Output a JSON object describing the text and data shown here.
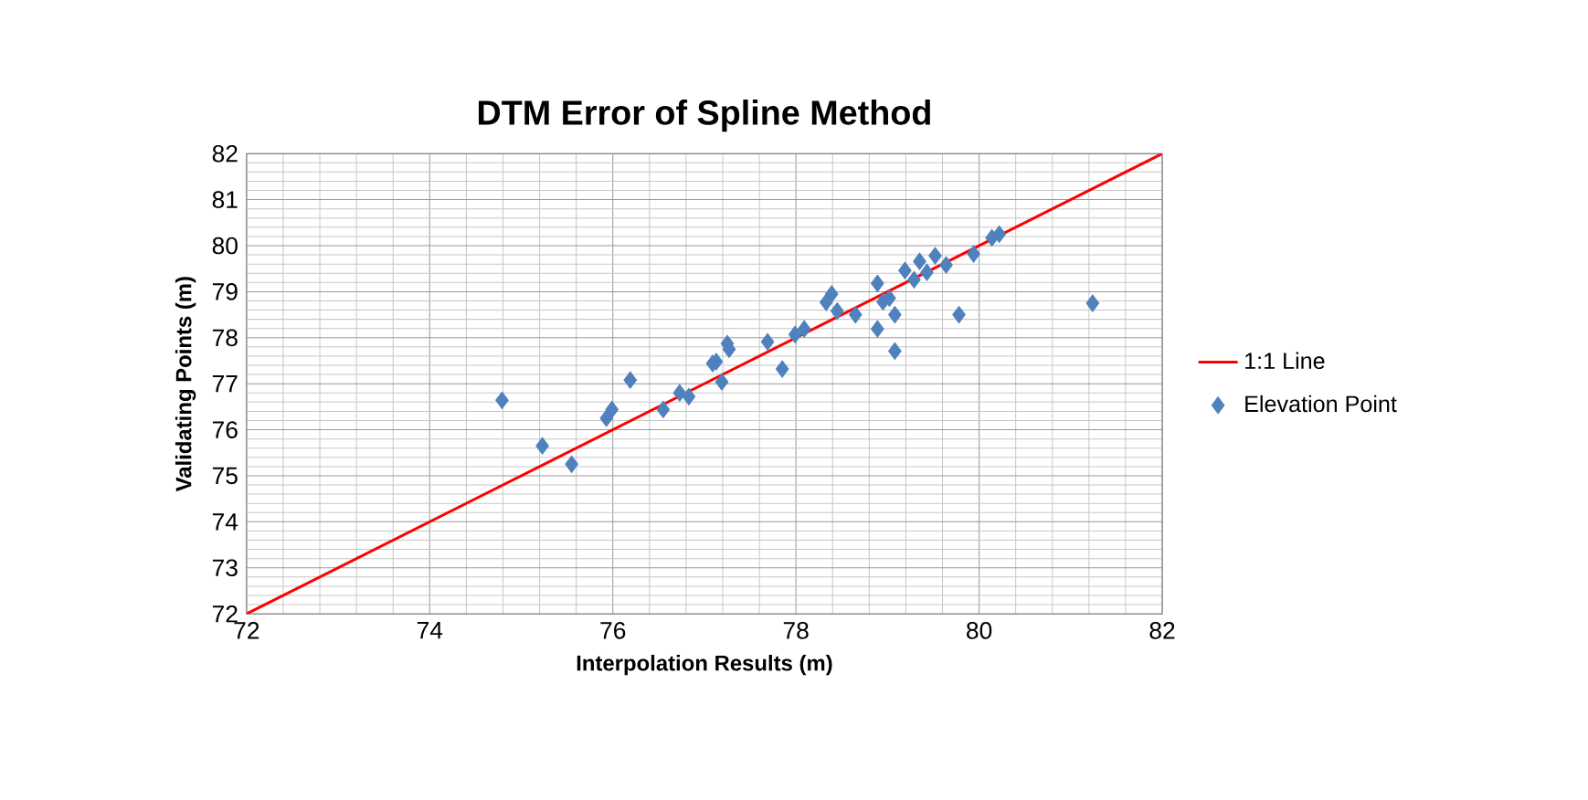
{
  "chart_data": {
    "type": "scatter",
    "title": "DTM Error of Spline Method",
    "xlabel": "Interpolation Results (m)",
    "ylabel": "Validating Points (m)",
    "xlim": [
      72,
      82
    ],
    "ylim": [
      72,
      82
    ],
    "xticks": [
      72,
      74,
      76,
      78,
      80,
      82
    ],
    "yticks": [
      72,
      73,
      74,
      75,
      76,
      77,
      78,
      79,
      80,
      81,
      82
    ],
    "grid": true,
    "legend": "right",
    "series": [
      {
        "name": "1:1 Line",
        "type": "line",
        "color": "#ff0000",
        "marker": "none",
        "x": [
          72,
          82
        ],
        "values": [
          72,
          82
        ]
      },
      {
        "name": "Elevation Point",
        "color": "#4f81bd",
        "marker": "diamond",
        "x": [
          74.79,
          75.23,
          75.55,
          75.93,
          75.99,
          76.19,
          76.55,
          76.73,
          76.83,
          77.09,
          77.27,
          77.19,
          77.25,
          77.13,
          77.85,
          77.69,
          78.09,
          77.99,
          78.39,
          78.33,
          78.45,
          78.65,
          78.89,
          78.95,
          78.89,
          79.08,
          79.08,
          79.19,
          79.35,
          79.52,
          79.64,
          79.94,
          79.78,
          80.22,
          80.14,
          81.24,
          79.02,
          79.43,
          79.29
        ],
        "values": [
          76.64,
          75.65,
          75.25,
          76.25,
          76.44,
          77.08,
          76.44,
          76.8,
          76.72,
          77.44,
          77.75,
          77.04,
          77.87,
          77.48,
          77.32,
          77.91,
          78.19,
          78.07,
          78.95,
          78.77,
          78.58,
          78.5,
          79.18,
          78.78,
          78.19,
          78.5,
          77.71,
          79.46,
          79.66,
          79.78,
          79.58,
          79.82,
          78.5,
          80.25,
          80.17,
          78.75,
          78.86,
          79.42,
          79.26
        ]
      }
    ]
  }
}
